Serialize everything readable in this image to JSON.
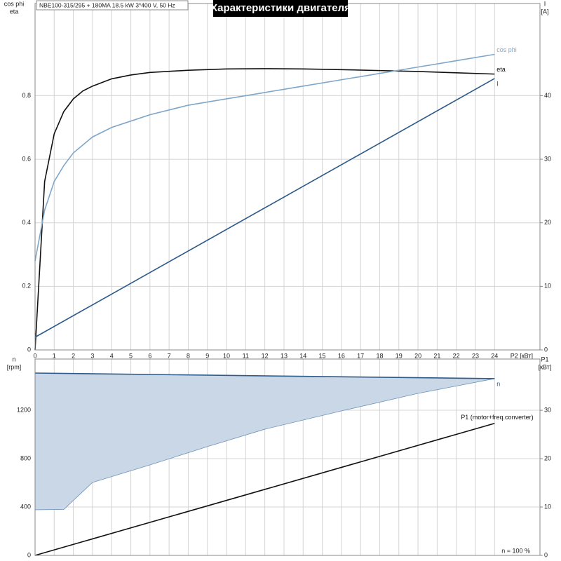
{
  "chart_data": [
    {
      "type": "line",
      "title": "Характеристики двигателя",
      "subtitle": "NBE100-315/295 + 180MA   18.5 kW   3*400 V, 50 Hz",
      "y_label": [
        "cos phi",
        "eta"
      ],
      "y2_label": [
        "I",
        "[A]"
      ],
      "x_label": "P2 [кВт]",
      "xlim": [
        0,
        26.37
      ],
      "xticks": [
        0,
        1,
        2,
        3,
        4,
        5,
        6,
        7,
        8,
        9,
        10,
        11,
        12,
        13,
        14,
        15,
        16,
        17,
        18,
        19,
        20,
        21,
        22,
        23,
        24
      ],
      "ylim": [
        0,
        1.09
      ],
      "yticks": [
        0,
        0.2,
        0.4,
        0.6,
        0.8
      ],
      "y2lim": [
        0,
        54.5
      ],
      "y2ticks": [
        0,
        10,
        20,
        30,
        40
      ],
      "grid": true,
      "series": [
        {
          "name": "eta",
          "color": "#111111",
          "x": [
            0,
            0.5,
            1,
            1.5,
            2,
            2.5,
            3,
            4,
            5,
            6,
            8,
            10,
            12,
            14,
            16,
            18,
            20,
            22,
            24
          ],
          "values": [
            0,
            0.53,
            0.68,
            0.75,
            0.79,
            0.815,
            0.83,
            0.853,
            0.865,
            0.873,
            0.88,
            0.884,
            0.885,
            0.884,
            0.882,
            0.879,
            0.876,
            0.872,
            0.868
          ]
        },
        {
          "name": "cos phi",
          "color": "#7fa6c8",
          "x": [
            0,
            0.5,
            1,
            1.5,
            2,
            3,
            4,
            5,
            6,
            8,
            10,
            12,
            14,
            16,
            18,
            20,
            22,
            24
          ],
          "values": [
            0.28,
            0.44,
            0.53,
            0.58,
            0.62,
            0.67,
            0.7,
            0.72,
            0.74,
            0.77,
            0.79,
            0.81,
            0.83,
            0.85,
            0.87,
            0.89,
            0.91,
            0.93
          ]
        },
        {
          "name": "I",
          "color": "#2e5b8a",
          "axis": "y2",
          "x": [
            0,
            24
          ],
          "values": [
            2,
            42.7
          ]
        }
      ]
    },
    {
      "type": "line",
      "y_label": [
        "n",
        "[rpm]"
      ],
      "y2_label": [
        "P1",
        "[кВт]"
      ],
      "xlim": [
        0,
        26.37
      ],
      "xticks": [
        0,
        1,
        2,
        3,
        4,
        5,
        6,
        7,
        8,
        9,
        10,
        11,
        12,
        13,
        14,
        15,
        16,
        17,
        18,
        19,
        20,
        21,
        22,
        23,
        24
      ],
      "ylim": [
        0,
        1623
      ],
      "yticks": [
        0,
        400,
        800,
        1200
      ],
      "y2lim": [
        0,
        40.6
      ],
      "y2ticks": [
        0,
        10,
        20,
        30
      ],
      "grid": true,
      "annotation": "n = 100 %",
      "fill": {
        "color": "#c9d7e6",
        "x": [
          0,
          1.5,
          3,
          6,
          9,
          12,
          16,
          20,
          24
        ],
        "values": [
          377,
          380,
          603,
          748,
          899,
          1043,
          1194,
          1339,
          1461
        ]
      },
      "series": [
        {
          "name": "n",
          "color": "#2e5b8a",
          "x": [
            0,
            24
          ],
          "values": [
            1507,
            1461
          ]
        },
        {
          "name": "P1 (motor+freq.converter)",
          "color": "#111111",
          "axis": "y2",
          "x": [
            0,
            24
          ],
          "values": [
            0,
            27.3
          ]
        }
      ]
    }
  ]
}
